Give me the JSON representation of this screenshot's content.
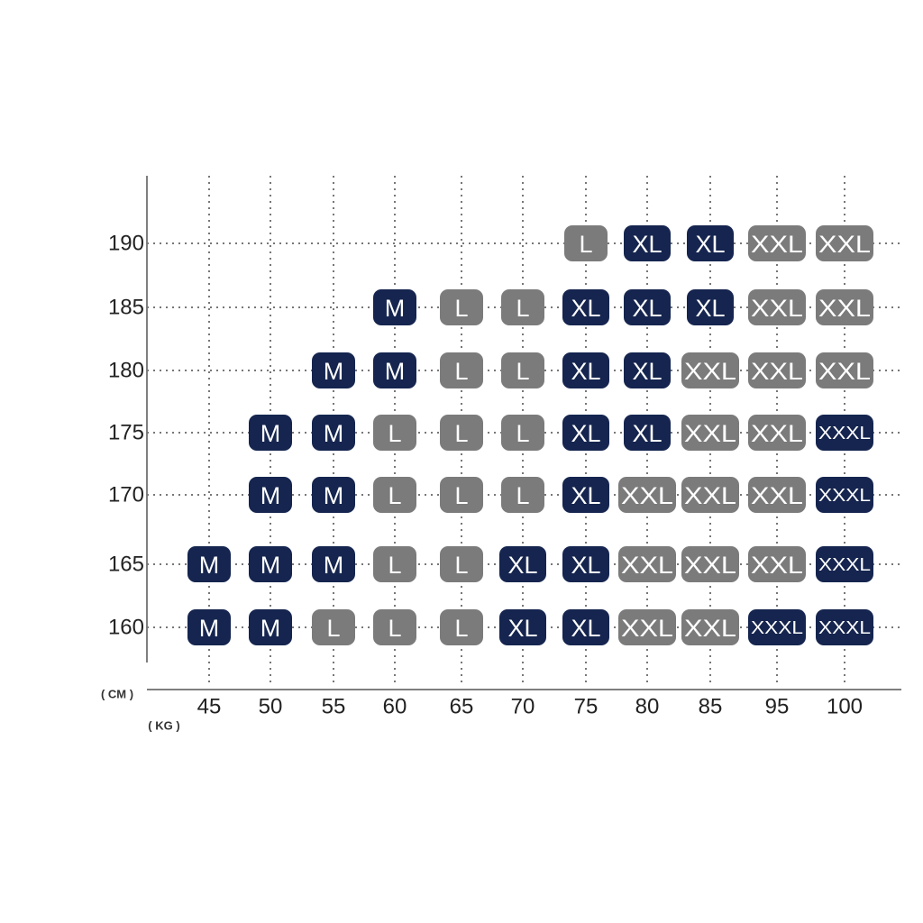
{
  "table": {
    "y_unit": "( CM )",
    "x_unit": "( KG )",
    "columns": [
      45,
      50,
      55,
      60,
      65,
      70,
      75,
      80,
      85,
      95,
      100
    ],
    "rows": [
      {
        "height": 190,
        "cells": [
          null,
          null,
          null,
          null,
          null,
          null,
          {
            "size": "L",
            "color": "#7b7b7b"
          },
          {
            "size": "XL",
            "color": "#15254f"
          },
          {
            "size": "XL",
            "color": "#15254f"
          },
          {
            "size": "XXL",
            "color": "#7b7b7b"
          },
          {
            "size": "XXL",
            "color": "#7b7b7b"
          }
        ]
      },
      {
        "height": 185,
        "cells": [
          null,
          null,
          null,
          {
            "size": "M",
            "color": "#15254f"
          },
          {
            "size": "L",
            "color": "#7b7b7b"
          },
          {
            "size": "L",
            "color": "#7b7b7b"
          },
          {
            "size": "XL",
            "color": "#15254f"
          },
          {
            "size": "XL",
            "color": "#15254f"
          },
          {
            "size": "XL",
            "color": "#15254f"
          },
          {
            "size": "XXL",
            "color": "#7b7b7b"
          },
          {
            "size": "XXL",
            "color": "#7b7b7b"
          }
        ]
      },
      {
        "height": 180,
        "cells": [
          null,
          null,
          {
            "size": "M",
            "color": "#15254f"
          },
          {
            "size": "M",
            "color": "#15254f"
          },
          {
            "size": "L",
            "color": "#7b7b7b"
          },
          {
            "size": "L",
            "color": "#7b7b7b"
          },
          {
            "size": "XL",
            "color": "#15254f"
          },
          {
            "size": "XL",
            "color": "#15254f"
          },
          {
            "size": "XXL",
            "color": "#7b7b7b"
          },
          {
            "size": "XXL",
            "color": "#7b7b7b"
          },
          {
            "size": "XXL",
            "color": "#7b7b7b"
          }
        ]
      },
      {
        "height": 175,
        "cells": [
          null,
          {
            "size": "M",
            "color": "#15254f"
          },
          {
            "size": "M",
            "color": "#15254f"
          },
          {
            "size": "L",
            "color": "#7b7b7b"
          },
          {
            "size": "L",
            "color": "#7b7b7b"
          },
          {
            "size": "L",
            "color": "#7b7b7b"
          },
          {
            "size": "XL",
            "color": "#15254f"
          },
          {
            "size": "XL",
            "color": "#15254f"
          },
          {
            "size": "XXL",
            "color": "#7b7b7b"
          },
          {
            "size": "XXL",
            "color": "#7b7b7b"
          },
          {
            "size": "XXXL",
            "color": "#15254f"
          }
        ]
      },
      {
        "height": 170,
        "cells": [
          null,
          {
            "size": "M",
            "color": "#15254f"
          },
          {
            "size": "M",
            "color": "#15254f"
          },
          {
            "size": "L",
            "color": "#7b7b7b"
          },
          {
            "size": "L",
            "color": "#7b7b7b"
          },
          {
            "size": "L",
            "color": "#7b7b7b"
          },
          {
            "size": "XL",
            "color": "#15254f"
          },
          {
            "size": "XXL",
            "color": "#7b7b7b"
          },
          {
            "size": "XXL",
            "color": "#7b7b7b"
          },
          {
            "size": "XXL",
            "color": "#7b7b7b"
          },
          {
            "size": "XXXL",
            "color": "#15254f"
          }
        ]
      },
      {
        "height": 165,
        "cells": [
          {
            "size": "M",
            "color": "#15254f"
          },
          {
            "size": "M",
            "color": "#15254f"
          },
          {
            "size": "M",
            "color": "#15254f"
          },
          {
            "size": "L",
            "color": "#7b7b7b"
          },
          {
            "size": "L",
            "color": "#7b7b7b"
          },
          {
            "size": "XL",
            "color": "#15254f"
          },
          {
            "size": "XL",
            "color": "#15254f"
          },
          {
            "size": "XXL",
            "color": "#7b7b7b"
          },
          {
            "size": "XXL",
            "color": "#7b7b7b"
          },
          {
            "size": "XXL",
            "color": "#7b7b7b"
          },
          {
            "size": "XXXL",
            "color": "#15254f"
          }
        ]
      },
      {
        "height": 160,
        "cells": [
          {
            "size": "M",
            "color": "#15254f"
          },
          {
            "size": "M",
            "color": "#15254f"
          },
          {
            "size": "L",
            "color": "#7b7b7b"
          },
          {
            "size": "L",
            "color": "#7b7b7b"
          },
          {
            "size": "L",
            "color": "#7b7b7b"
          },
          {
            "size": "XL",
            "color": "#15254f"
          },
          {
            "size": "XL",
            "color": "#15254f"
          },
          {
            "size": "XXL",
            "color": "#7b7b7b"
          },
          {
            "size": "XXL",
            "color": "#7b7b7b"
          },
          {
            "size": "XXXL",
            "color": "#15254f"
          },
          {
            "size": "XXXL",
            "color": "#15254f"
          }
        ]
      }
    ]
  }
}
